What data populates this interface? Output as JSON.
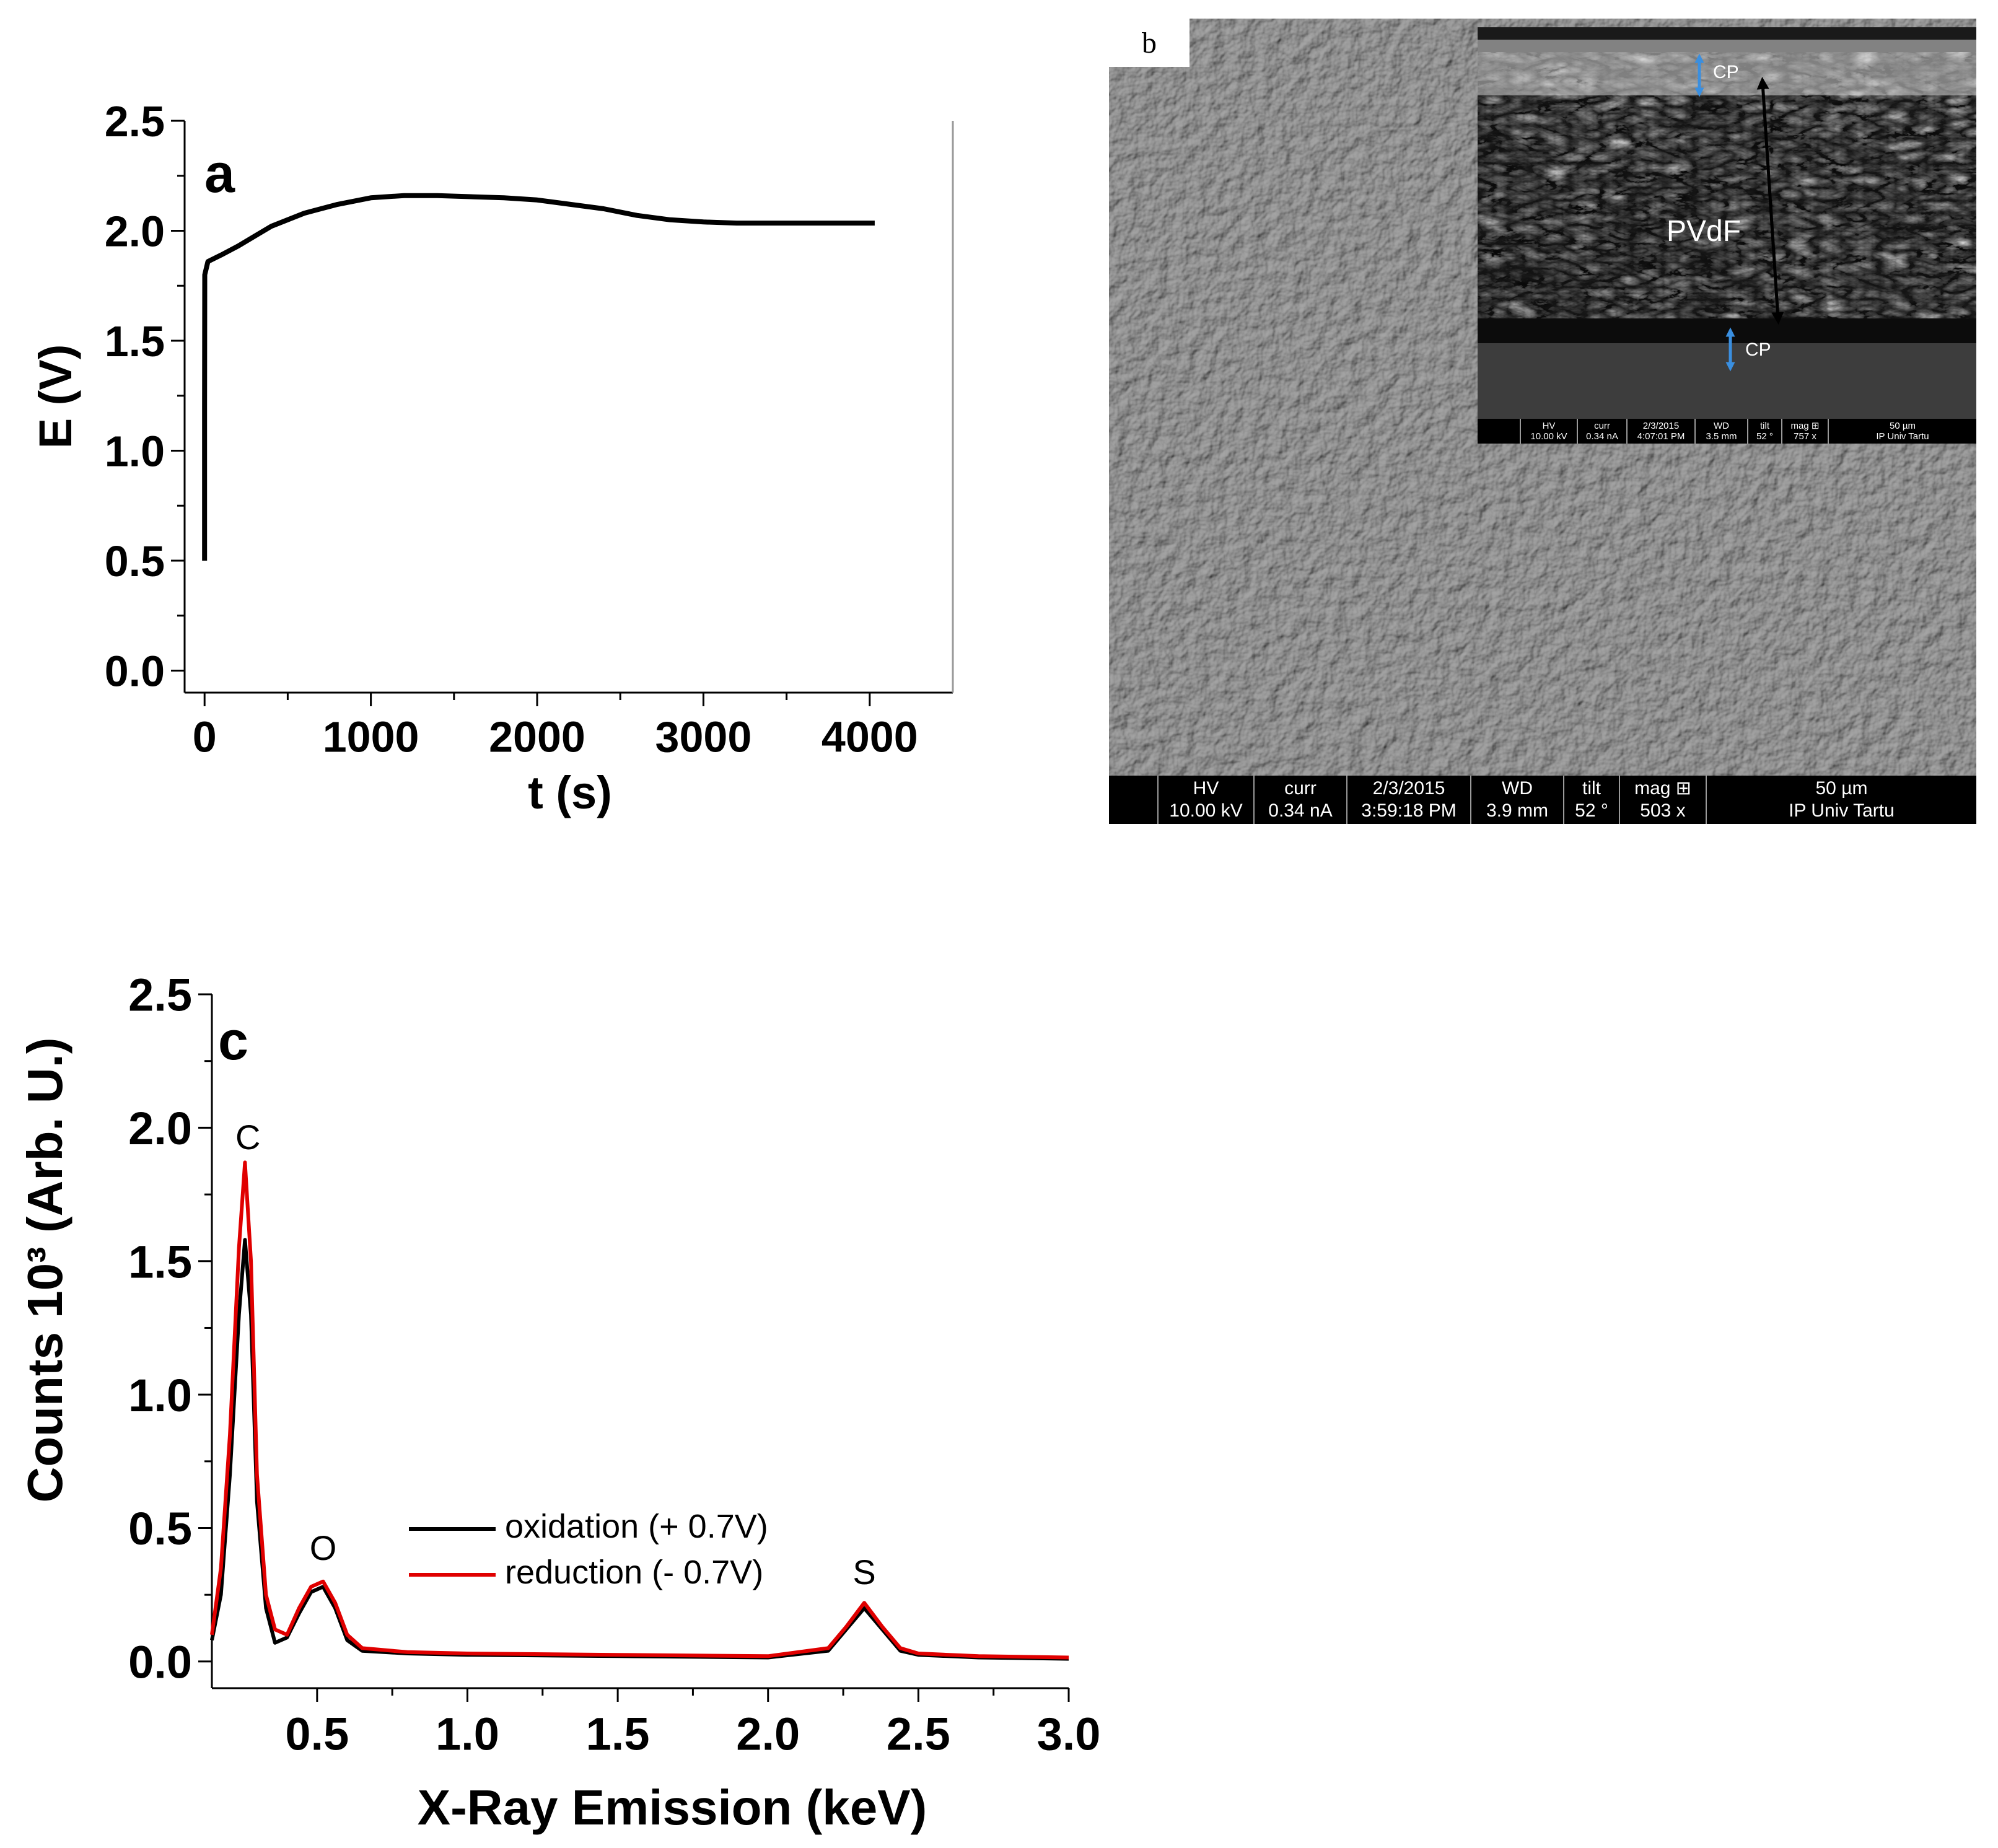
{
  "chart_data": [
    {
      "panel": "a",
      "type": "line",
      "xlabel": "t (s)",
      "ylabel": "E (V)",
      "xlim": [
        -120,
        4500
      ],
      "ylim": [
        -0.1,
        2.5
      ],
      "xticks": [
        "0",
        "1000",
        "2000",
        "3000",
        "4000"
      ],
      "yticks": [
        "0.0",
        "0.5",
        "1.0",
        "1.5",
        "2.0",
        "2.5"
      ],
      "grid": false,
      "series": [
        {
          "color": "#000000",
          "x": [
            0,
            0,
            1,
            20,
            100,
            200,
            400,
            600,
            800,
            1000,
            1200,
            1400,
            1600,
            1800,
            2000,
            2200,
            2400,
            2600,
            2800,
            3000,
            3200,
            3400,
            3600,
            3800,
            4000,
            4030
          ],
          "y": [
            0.5,
            1.2,
            1.8,
            1.86,
            1.89,
            1.93,
            2.02,
            2.08,
            2.12,
            2.15,
            2.16,
            2.16,
            2.155,
            2.15,
            2.14,
            2.12,
            2.1,
            2.07,
            2.05,
            2.04,
            2.035,
            2.035,
            2.035,
            2.035,
            2.035,
            2.035
          ]
        }
      ]
    },
    {
      "panel": "c",
      "type": "line",
      "xlabel": "X-Ray Emission (keV)",
      "ylabel": "Counts 10³ (Arb. U.)",
      "xlim": [
        0.15,
        3.0
      ],
      "ylim": [
        -0.1,
        2.5
      ],
      "xticks": [
        "0.5",
        "1.0",
        "1.5",
        "2.0",
        "2.5",
        "3.0"
      ],
      "yticks": [
        "0.0",
        "0.5",
        "1.0",
        "1.5",
        "2.0",
        "2.5"
      ],
      "grid": false,
      "legend_position": "center",
      "annotations": [
        {
          "text": "C",
          "x": 0.27,
          "y": 1.92
        },
        {
          "text": "O",
          "x": 0.52,
          "y": 0.38
        },
        {
          "text": "S",
          "x": 2.32,
          "y": 0.29
        }
      ],
      "series": [
        {
          "name": "oxidation (+ 0.7V)",
          "color": "#000000",
          "x": [
            0.15,
            0.18,
            0.21,
            0.24,
            0.26,
            0.28,
            0.3,
            0.33,
            0.36,
            0.4,
            0.44,
            0.48,
            0.52,
            0.56,
            0.6,
            0.65,
            0.8,
            1.0,
            1.5,
            2.0,
            2.2,
            2.26,
            2.32,
            2.38,
            2.44,
            2.5,
            2.7,
            3.0
          ],
          "y": [
            0.08,
            0.25,
            0.7,
            1.3,
            1.58,
            1.3,
            0.6,
            0.2,
            0.07,
            0.09,
            0.18,
            0.26,
            0.28,
            0.2,
            0.08,
            0.04,
            0.03,
            0.025,
            0.02,
            0.015,
            0.04,
            0.12,
            0.2,
            0.12,
            0.04,
            0.025,
            0.015,
            0.01
          ]
        },
        {
          "name": "reduction (- 0.7V)",
          "color": "#e00000",
          "x": [
            0.15,
            0.18,
            0.21,
            0.24,
            0.26,
            0.28,
            0.3,
            0.33,
            0.36,
            0.4,
            0.44,
            0.48,
            0.52,
            0.56,
            0.6,
            0.65,
            0.8,
            1.0,
            1.5,
            2.0,
            2.2,
            2.26,
            2.32,
            2.38,
            2.44,
            2.5,
            2.7,
            3.0
          ],
          "y": [
            0.1,
            0.35,
            0.85,
            1.55,
            1.87,
            1.5,
            0.7,
            0.25,
            0.12,
            0.1,
            0.2,
            0.28,
            0.3,
            0.22,
            0.1,
            0.05,
            0.035,
            0.03,
            0.025,
            0.02,
            0.05,
            0.13,
            0.22,
            0.13,
            0.05,
            0.03,
            0.02,
            0.015
          ]
        }
      ]
    }
  ],
  "panels": {
    "a": {
      "letter": "a"
    },
    "b": {
      "letter": "b"
    },
    "c": {
      "letter": "c"
    }
  },
  "sem_main": {
    "bar": [
      {
        "label": "HV",
        "value": "10.00 kV"
      },
      {
        "label": "curr",
        "value": "0.34 nA"
      },
      {
        "label": "2/3/2015",
        "value": "3:59:18 PM"
      },
      {
        "label": "WD",
        "value": "3.9 mm"
      },
      {
        "label": "tilt",
        "value": "52 °"
      },
      {
        "label": "mag ⊞",
        "value": "503 x"
      },
      {
        "label": "50 µm",
        "value": "IP Univ Tartu"
      }
    ]
  },
  "sem_inset": {
    "labels": {
      "cp_top": "CP",
      "cp_bottom": "CP",
      "middle": "PVdF"
    },
    "bar": [
      {
        "label": "HV",
        "value": "10.00 kV"
      },
      {
        "label": "curr",
        "value": "0.34 nA"
      },
      {
        "label": "2/3/2015",
        "value": "4:07:01 PM"
      },
      {
        "label": "WD",
        "value": "3.5 mm"
      },
      {
        "label": "tilt",
        "value": "52 °"
      },
      {
        "label": "mag ⊞",
        "value": "757 x"
      },
      {
        "label": "50 µm",
        "value": "IP Univ Tartu"
      }
    ]
  }
}
